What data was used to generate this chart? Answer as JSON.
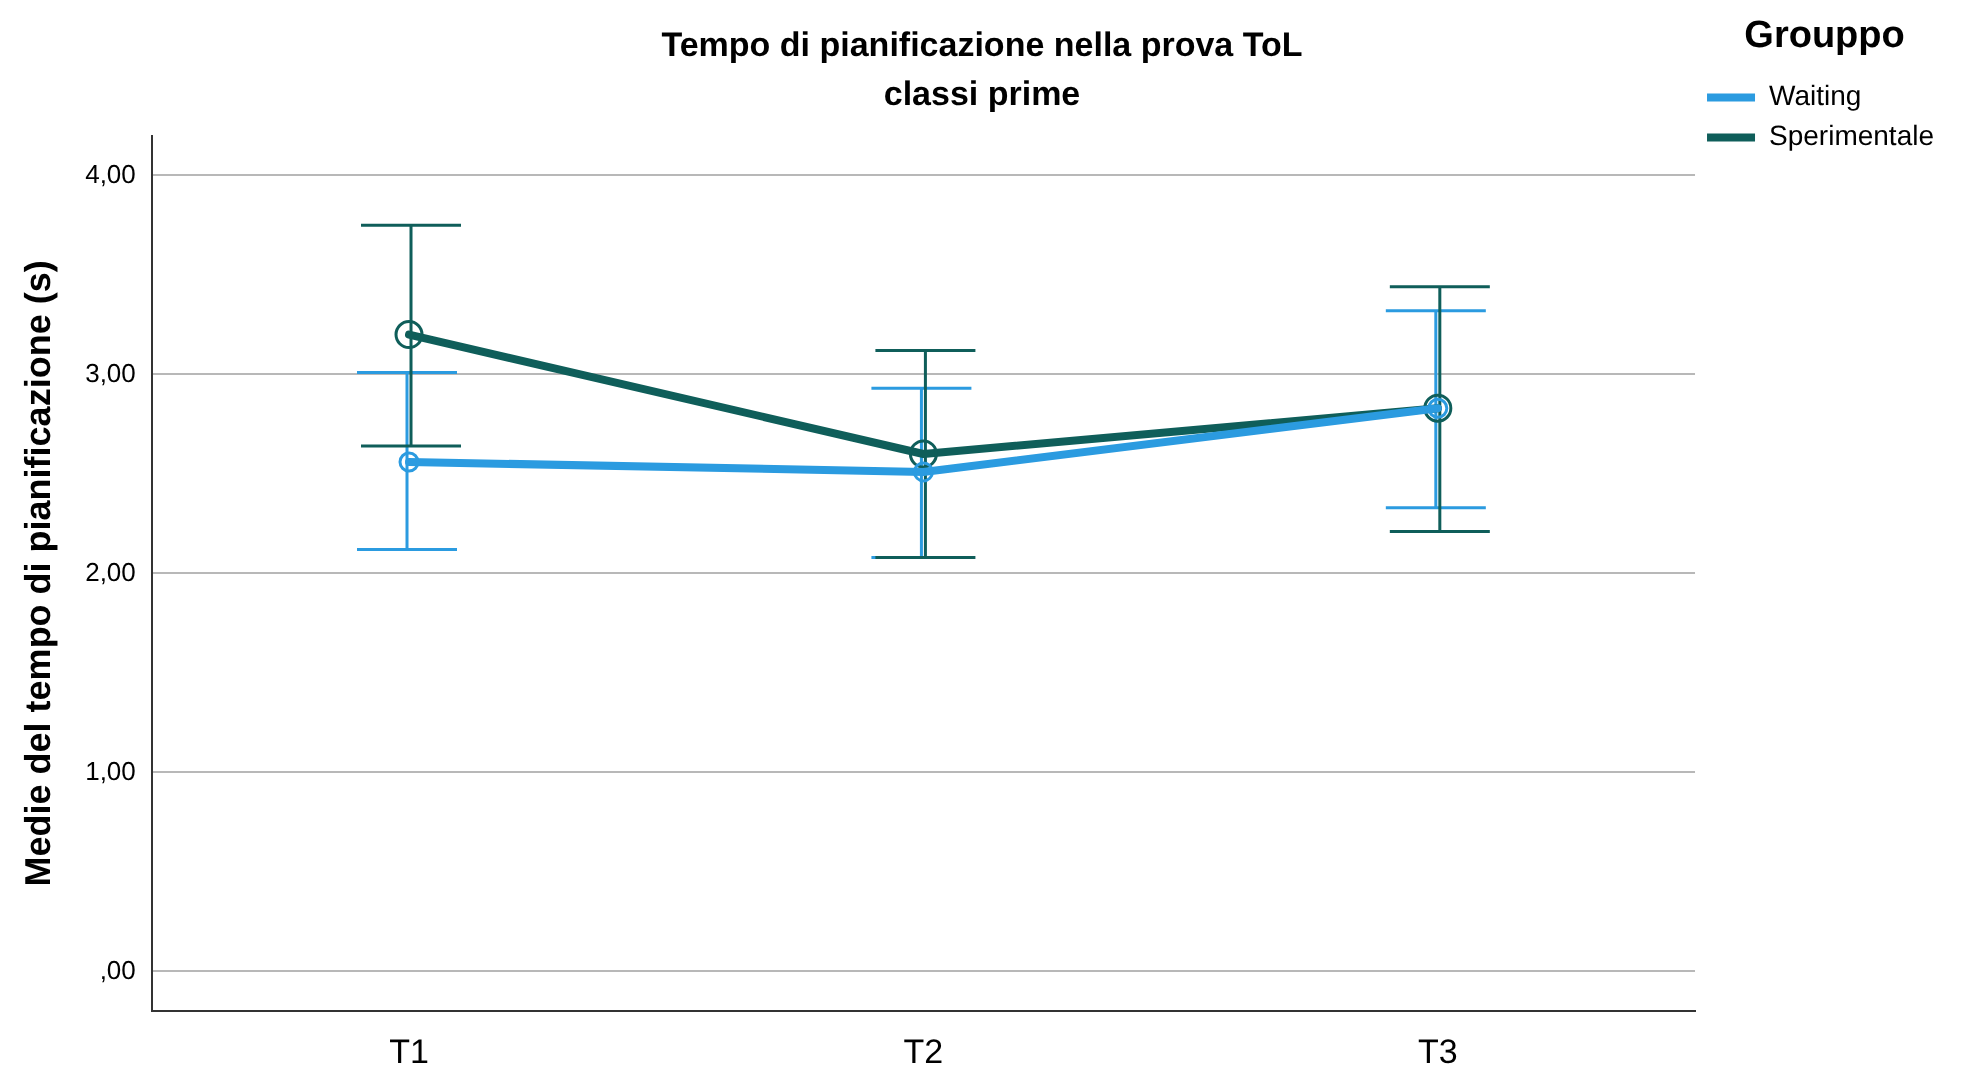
{
  "chart_data": {
    "type": "line",
    "title": "Tempo di pianificazione nella prova ToL",
    "subtitle": "classi prime",
    "ylabel": "Medie del tempo di pianificazione (s)",
    "legend_title": "Grouppo",
    "categories": [
      "T1",
      "T2",
      "T3"
    ],
    "series": [
      {
        "name": "Waiting",
        "color": "#2b9be0",
        "values": [
          2.56,
          2.51,
          2.83
        ],
        "errors": [
          [
            2.12,
            3.01
          ],
          [
            2.08,
            2.93
          ],
          [
            2.33,
            3.32
          ]
        ]
      },
      {
        "name": "Sperimentale",
        "color": "#0f5e5a",
        "values": [
          3.2,
          2.6,
          2.83
        ],
        "errors": [
          [
            2.64,
            3.75
          ],
          [
            2.08,
            3.12
          ],
          [
            2.21,
            3.44
          ]
        ]
      }
    ],
    "ylim": [
      -0.2,
      4.2
    ],
    "yticks": [
      {
        "value": 0,
        "label": ",00"
      },
      {
        "value": 1,
        "label": "1,00"
      },
      {
        "value": 2,
        "label": "2,00"
      },
      {
        "value": 3,
        "label": "3,00"
      },
      {
        "value": 4,
        "label": "4,00"
      }
    ],
    "grid": "y",
    "legend": "right",
    "marker": "circle",
    "line_style": "solid"
  }
}
